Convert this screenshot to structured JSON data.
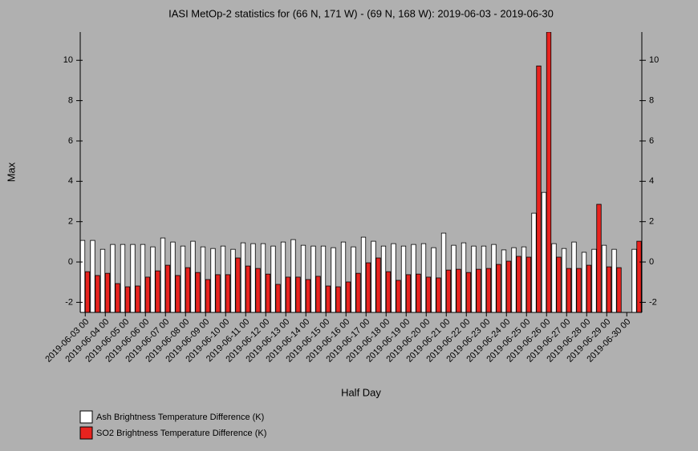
{
  "chart_data": {
    "type": "bar",
    "title": "IASI MetOp-2 statistics for (66 N, 171 W) - (69 N, 168 W): 2019-06-03 - 2019-06-30",
    "x_label": "Half Day",
    "y_label": "Max",
    "categories": [
      "2019-06-03 00",
      null,
      "2019-06-04 00",
      null,
      "2019-06-05 00",
      null,
      "2019-06-06 00",
      null,
      "2019-06-07 00",
      null,
      "2019-06-08 00",
      null,
      "2019-06-09 00",
      null,
      "2019-06-10 00",
      null,
      "2019-06-11 00",
      null,
      "2019-06-12 00",
      null,
      "2019-06-13 00",
      null,
      "2019-06-14 00",
      null,
      "2019-06-15 00",
      null,
      "2019-06-16 00",
      null,
      "2019-06-17 00",
      null,
      "2019-06-18 00",
      null,
      "2019-06-19 00",
      null,
      "2019-06-20 00",
      null,
      "2019-06-21 00",
      null,
      "2019-06-22 00",
      null,
      "2019-06-23 00",
      null,
      "2019-06-24 00",
      null,
      "2019-06-25 00",
      null,
      "2019-06-26 00",
      null,
      "2019-06-27 00",
      null,
      "2019-06-28 00",
      null,
      "2019-06-29 00",
      null,
      "2019-06-30 00",
      null
    ],
    "series": [
      {
        "name": "Ash Brightness Temperature Difference (K)",
        "color": "#ffffff",
        "values": [
          1.07,
          1.07,
          0.63,
          0.87,
          0.87,
          0.87,
          0.87,
          0.75,
          1.19,
          0.99,
          0.79,
          1.03,
          0.75,
          0.67,
          0.79,
          0.63,
          0.95,
          0.91,
          0.91,
          0.79,
          0.99,
          1.11,
          0.83,
          0.79,
          0.79,
          0.71,
          0.99,
          0.75,
          1.23,
          1.03,
          0.79,
          0.91,
          0.79,
          0.87,
          0.91,
          0.71,
          1.43,
          0.83,
          0.95,
          0.79,
          0.79,
          0.87,
          0.6,
          0.71,
          0.75,
          2.42,
          3.45,
          0.91,
          0.67,
          0.99,
          0.48,
          0.63,
          0.83,
          0.63,
          null,
          0.63
        ]
      },
      {
        "name": "SO2 Brightness Temperature Difference (K)",
        "color": "#e8231f",
        "values": [
          -0.48,
          -0.67,
          -0.56,
          -1.07,
          -1.23,
          -1.19,
          -0.75,
          -0.44,
          -0.16,
          -0.67,
          -0.28,
          -0.52,
          -0.87,
          -0.63,
          -0.63,
          0.2,
          -0.2,
          -0.32,
          -0.6,
          -1.11,
          -0.75,
          -0.75,
          -0.87,
          -0.71,
          -1.19,
          -1.23,
          -0.99,
          -0.56,
          -0.04,
          0.2,
          -0.48,
          -0.91,
          -0.63,
          -0.6,
          -0.75,
          -0.79,
          -0.4,
          -0.36,
          -0.52,
          -0.36,
          -0.32,
          -0.12,
          0.04,
          0.28,
          0.24,
          9.72,
          11.4,
          0.24,
          -0.32,
          -0.32,
          -0.16,
          2.86,
          -0.24,
          -0.28,
          null,
          1.03
        ]
      }
    ],
    "ylim": [
      -2.5,
      11.4
    ],
    "yticks": [
      -2,
      0,
      2,
      4,
      6,
      8,
      10
    ]
  }
}
